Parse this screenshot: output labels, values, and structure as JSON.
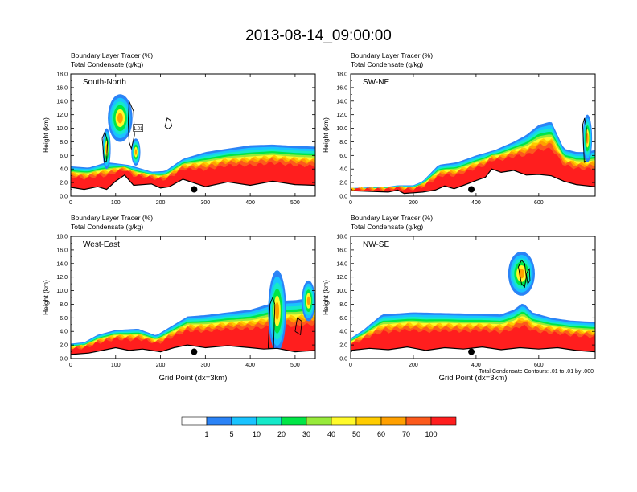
{
  "title": "2013-08-14_09:00:00",
  "colors": {
    "palette": [
      "#ffffff",
      "#2b83f6",
      "#19c3ff",
      "#15e9c9",
      "#00e646",
      "#97ea3a",
      "#fffa2a",
      "#ffcc00",
      "#ffa000",
      "#fc5a1c",
      "#ff1e1e"
    ],
    "contour": "#000000",
    "terrain": "#000000",
    "marker": "#000000"
  },
  "colorbar": {
    "labels": [
      "1",
      "5",
      "10",
      "20",
      "30",
      "40",
      "50",
      "60",
      "70",
      "100"
    ]
  },
  "note": "Total Condensate Contours: .01 to .01 by .000",
  "chart_data": [
    {
      "type": "heatmap",
      "name": "South-North",
      "title_line1": "Boundary Layer Tracer   (%)",
      "title_line2": "Total Condensate   (g/kg)",
      "xlabel": "",
      "ylabel": "Height (km)",
      "xlim": [
        0,
        545
      ],
      "ylim": [
        0,
        18
      ],
      "xticks": [
        0,
        100,
        200,
        300,
        400,
        500
      ],
      "yticks": [
        0,
        2,
        4,
        6,
        8,
        10,
        12,
        14,
        16,
        18
      ],
      "marker_x": 275,
      "marker_y": 1.0,
      "box_label": "1.01",
      "box_label_x": 150,
      "box_label_y": 10.0,
      "terrain": [
        [
          0,
          1.3
        ],
        [
          30,
          1.0
        ],
        [
          60,
          1.4
        ],
        [
          80,
          1.0
        ],
        [
          100,
          2.2
        ],
        [
          120,
          3.1
        ],
        [
          140,
          1.6
        ],
        [
          180,
          1.8
        ],
        [
          200,
          1.2
        ],
        [
          220,
          1.4
        ],
        [
          250,
          2.5
        ],
        [
          300,
          1.4
        ],
        [
          350,
          2.1
        ],
        [
          400,
          1.6
        ],
        [
          450,
          2.2
        ],
        [
          500,
          1.7
        ],
        [
          545,
          1.6
        ]
      ],
      "layer_top": [
        [
          0,
          4.4
        ],
        [
          40,
          4.2
        ],
        [
          80,
          5.0
        ],
        [
          130,
          4.6
        ],
        [
          180,
          3.6
        ],
        [
          210,
          3.7
        ],
        [
          250,
          5.5
        ],
        [
          300,
          6.5
        ],
        [
          350,
          7.0
        ],
        [
          400,
          7.5
        ],
        [
          450,
          7.6
        ],
        [
          500,
          7.4
        ],
        [
          545,
          7.3
        ]
      ],
      "plumes": [
        {
          "x": 110,
          "y": 11.5,
          "w": 55,
          "h": 7.0
        },
        {
          "x": 80,
          "y": 7.0,
          "w": 18,
          "h": 6.0
        },
        {
          "x": 145,
          "y": 6.5,
          "w": 20,
          "h": 4.0
        }
      ],
      "contours": [
        [
          [
            210,
            10.2
          ],
          [
            215,
            11.5
          ],
          [
            222,
            11.2
          ],
          [
            225,
            10.3
          ],
          [
            218,
            9.9
          ],
          [
            210,
            10.2
          ]
        ],
        [
          [
            130,
            14.0
          ],
          [
            140,
            12.5
          ],
          [
            142,
            9.0
          ],
          [
            135,
            7.0
          ],
          [
            130,
            8.0
          ],
          [
            128,
            11.0
          ],
          [
            130,
            14.0
          ]
        ],
        [
          [
            70,
            8.5
          ],
          [
            75,
            5.0
          ],
          [
            80,
            5.2
          ],
          [
            82,
            8.0
          ],
          [
            76,
            9.5
          ],
          [
            70,
            8.5
          ]
        ]
      ]
    },
    {
      "type": "heatmap",
      "name": "SW-NE",
      "title_line1": "Boundary Layer Tracer   (%)",
      "title_line2": "Total Condensate   (g/kg)",
      "xlabel": "",
      "ylabel": "Height (km)",
      "xlim": [
        0,
        780
      ],
      "ylim": [
        0,
        18
      ],
      "xticks": [
        0,
        200,
        400,
        600
      ],
      "yticks": [
        0,
        2,
        4,
        6,
        8,
        10,
        12,
        14,
        16,
        18
      ],
      "marker_x": 385,
      "marker_y": 1.0,
      "terrain": [
        [
          0,
          0.8
        ],
        [
          120,
          0.6
        ],
        [
          150,
          0.9
        ],
        [
          170,
          0.4
        ],
        [
          200,
          0.5
        ],
        [
          230,
          0.6
        ],
        [
          270,
          0.9
        ],
        [
          300,
          1.5
        ],
        [
          330,
          1.1
        ],
        [
          360,
          1.6
        ],
        [
          400,
          2.3
        ],
        [
          430,
          2.8
        ],
        [
          450,
          4.0
        ],
        [
          480,
          3.5
        ],
        [
          520,
          3.8
        ],
        [
          560,
          3.1
        ],
        [
          600,
          3.2
        ],
        [
          640,
          3.0
        ],
        [
          680,
          2.2
        ],
        [
          720,
          1.7
        ],
        [
          780,
          1.4
        ]
      ],
      "layer_top": [
        [
          0,
          1.2
        ],
        [
          120,
          1.4
        ],
        [
          150,
          1.6
        ],
        [
          200,
          1.6
        ],
        [
          230,
          2.2
        ],
        [
          280,
          4.6
        ],
        [
          340,
          5.0
        ],
        [
          400,
          6.0
        ],
        [
          460,
          6.8
        ],
        [
          520,
          8.0
        ],
        [
          560,
          9.0
        ],
        [
          600,
          10.5
        ],
        [
          640,
          11.0
        ],
        [
          680,
          7.0
        ],
        [
          720,
          6.5
        ],
        [
          750,
          6.5
        ],
        [
          780,
          6.8
        ]
      ],
      "plumes": [
        {
          "x": 755,
          "y": 8.5,
          "w": 30,
          "h": 7.0
        }
      ],
      "contours": [
        [
          [
            740,
            10.5
          ],
          [
            745,
            5.0
          ],
          [
            750,
            5.2
          ],
          [
            752,
            10.0
          ],
          [
            746,
            11.5
          ],
          [
            740,
            10.5
          ]
        ]
      ]
    },
    {
      "type": "heatmap",
      "name": "West-East",
      "title_line1": "Boundary Layer Tracer   (%)",
      "title_line2": "Total Condensate   (g/kg)",
      "xlabel": "Grid Point (dx=3km)",
      "ylabel": "Height (km)",
      "xlim": [
        0,
        545
      ],
      "ylim": [
        0,
        18
      ],
      "xticks": [
        0,
        100,
        200,
        300,
        400,
        500
      ],
      "yticks": [
        0,
        2,
        4,
        6,
        8,
        10,
        12,
        14,
        16,
        18
      ],
      "marker_x": 275,
      "marker_y": 1.0,
      "terrain": [
        [
          0,
          0.6
        ],
        [
          40,
          0.8
        ],
        [
          70,
          1.2
        ],
        [
          100,
          1.6
        ],
        [
          130,
          1.2
        ],
        [
          160,
          1.4
        ],
        [
          200,
          1.0
        ],
        [
          230,
          1.6
        ],
        [
          260,
          2.0
        ],
        [
          300,
          1.6
        ],
        [
          350,
          1.9
        ],
        [
          400,
          1.6
        ],
        [
          430,
          1.4
        ],
        [
          460,
          1.5
        ],
        [
          500,
          1.0
        ],
        [
          545,
          1.2
        ]
      ],
      "layer_top": [
        [
          0,
          2.2
        ],
        [
          30,
          2.4
        ],
        [
          60,
          3.5
        ],
        [
          100,
          4.2
        ],
        [
          150,
          4.4
        ],
        [
          190,
          3.4
        ],
        [
          220,
          4.6
        ],
        [
          260,
          6.2
        ],
        [
          300,
          6.4
        ],
        [
          350,
          6.8
        ],
        [
          400,
          7.2
        ],
        [
          440,
          8.0
        ],
        [
          470,
          8.5
        ],
        [
          500,
          8.6
        ],
        [
          545,
          9.0
        ]
      ],
      "plumes": [
        {
          "x": 460,
          "y": 7.0,
          "w": 40,
          "h": 12.0
        },
        {
          "x": 530,
          "y": 8.5,
          "w": 30,
          "h": 6.0
        }
      ],
      "contours": [
        [
          [
            440,
            1.5
          ],
          [
            444,
            8.0
          ],
          [
            450,
            9.0
          ],
          [
            455,
            8.0
          ],
          [
            452,
            1.5
          ],
          [
            440,
            1.5
          ]
        ],
        [
          [
            500,
            4.0
          ],
          [
            505,
            6.0
          ],
          [
            515,
            5.5
          ],
          [
            512,
            3.5
          ],
          [
            500,
            4.0
          ]
        ]
      ]
    },
    {
      "type": "heatmap",
      "name": "NW-SE",
      "title_line1": "Boundary Layer Tracer   (%)",
      "title_line2": "Total Condensate   (g/kg)",
      "xlabel": "Grid Point (dx=3km)",
      "ylabel": "Height (km)",
      "xlim": [
        0,
        780
      ],
      "ylim": [
        0,
        18
      ],
      "xticks": [
        0,
        200,
        400,
        600
      ],
      "yticks": [
        0,
        2,
        4,
        6,
        8,
        10,
        12,
        14,
        16,
        18
      ],
      "marker_x": 385,
      "marker_y": 1.0,
      "terrain": [
        [
          0,
          1.2
        ],
        [
          60,
          1.5
        ],
        [
          120,
          1.3
        ],
        [
          180,
          1.7
        ],
        [
          240,
          1.2
        ],
        [
          300,
          1.6
        ],
        [
          360,
          1.4
        ],
        [
          420,
          1.7
        ],
        [
          480,
          1.3
        ],
        [
          540,
          1.6
        ],
        [
          600,
          1.4
        ],
        [
          660,
          1.6
        ],
        [
          720,
          1.2
        ],
        [
          780,
          1.0
        ]
      ],
      "layer_top": [
        [
          0,
          3.0
        ],
        [
          40,
          4.2
        ],
        [
          100,
          6.5
        ],
        [
          200,
          6.8
        ],
        [
          300,
          6.7
        ],
        [
          400,
          6.6
        ],
        [
          480,
          6.5
        ],
        [
          520,
          7.2
        ],
        [
          550,
          8.2
        ],
        [
          580,
          6.8
        ],
        [
          640,
          6.0
        ],
        [
          700,
          5.6
        ],
        [
          780,
          5.4
        ]
      ],
      "plumes": [
        {
          "x": 545,
          "y": 12.5,
          "w": 85,
          "h": 6.5
        }
      ],
      "contours": [
        [
          [
            535,
            13.5
          ],
          [
            545,
            11.0
          ],
          [
            555,
            10.5
          ],
          [
            560,
            12.0
          ],
          [
            555,
            14.0
          ],
          [
            545,
            14.5
          ],
          [
            535,
            13.5
          ]
        ],
        [
          [
            560,
            12.5
          ],
          [
            565,
            11.0
          ],
          [
            572,
            11.5
          ],
          [
            570,
            13.2
          ],
          [
            560,
            12.5
          ]
        ]
      ]
    }
  ]
}
